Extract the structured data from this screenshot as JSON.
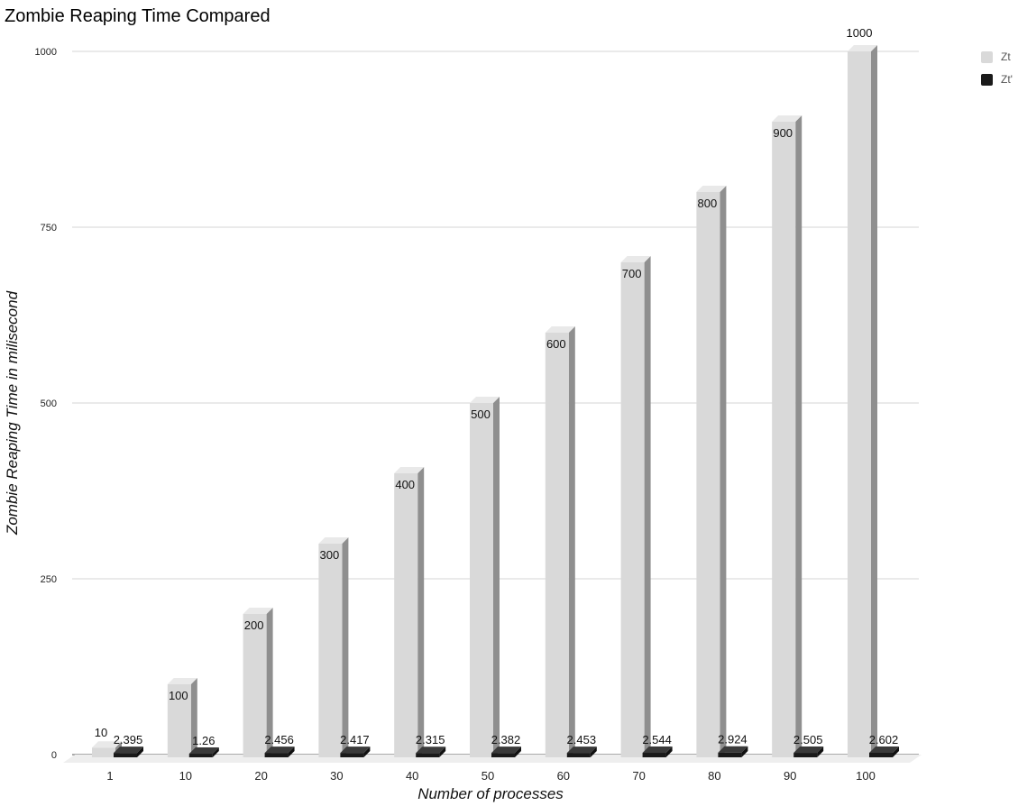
{
  "chart_data": {
    "type": "bar",
    "title": "Zombie Reaping Time Compared",
    "xlabel": "Number of processes",
    "ylabel": "Zombie Reaping Time in milisecond",
    "categories": [
      "1",
      "10",
      "20",
      "30",
      "40",
      "50",
      "60",
      "70",
      "80",
      "90",
      "100"
    ],
    "series": [
      {
        "name": "Zt",
        "color": "#d9d9d9",
        "values": [
          10,
          100,
          200,
          300,
          400,
          500,
          600,
          700,
          800,
          900,
          1000
        ],
        "labels": [
          "10",
          "100",
          "200",
          "300",
          "400",
          "500",
          "600",
          "700",
          "800",
          "900",
          "1000"
        ]
      },
      {
        "name": "Zt'",
        "color": "#1a1a1a",
        "values": [
          2.395,
          1.26,
          2.456,
          2.417,
          2.315,
          2.382,
          2.453,
          2.544,
          2.924,
          2.505,
          2.602
        ],
        "labels": [
          "2.395",
          "1.26",
          "2.456",
          "2.417",
          "2.315",
          "2.382",
          "2.453",
          "2.544",
          "2.924",
          "2.505",
          "2.602"
        ]
      }
    ],
    "ylim": [
      0,
      1000
    ],
    "yticks": [
      "0",
      "250",
      "500",
      "750",
      "1000"
    ],
    "ytick_values": [
      0,
      250,
      500,
      750,
      1000
    ],
    "grid": true,
    "legend": "top-right",
    "style": "3d"
  }
}
